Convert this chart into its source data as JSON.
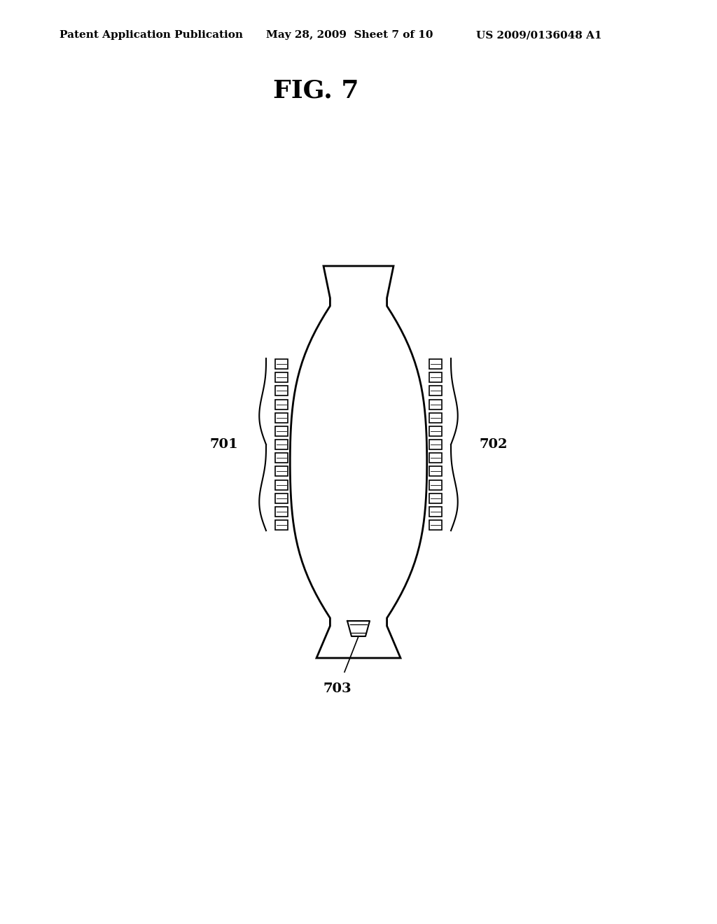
{
  "background_color": "#ffffff",
  "line_color": "#000000",
  "header_text": "Patent Application Publication",
  "header_date": "May 28, 2009  Sheet 7 of 10",
  "header_patent": "US 2009/0136048 A1",
  "fig_label": "FIG. 7",
  "label_701": "701",
  "label_702": "702",
  "label_703": "703",
  "header_fontsize": 11,
  "fig_label_fontsize": 26,
  "annotation_fontsize": 14
}
